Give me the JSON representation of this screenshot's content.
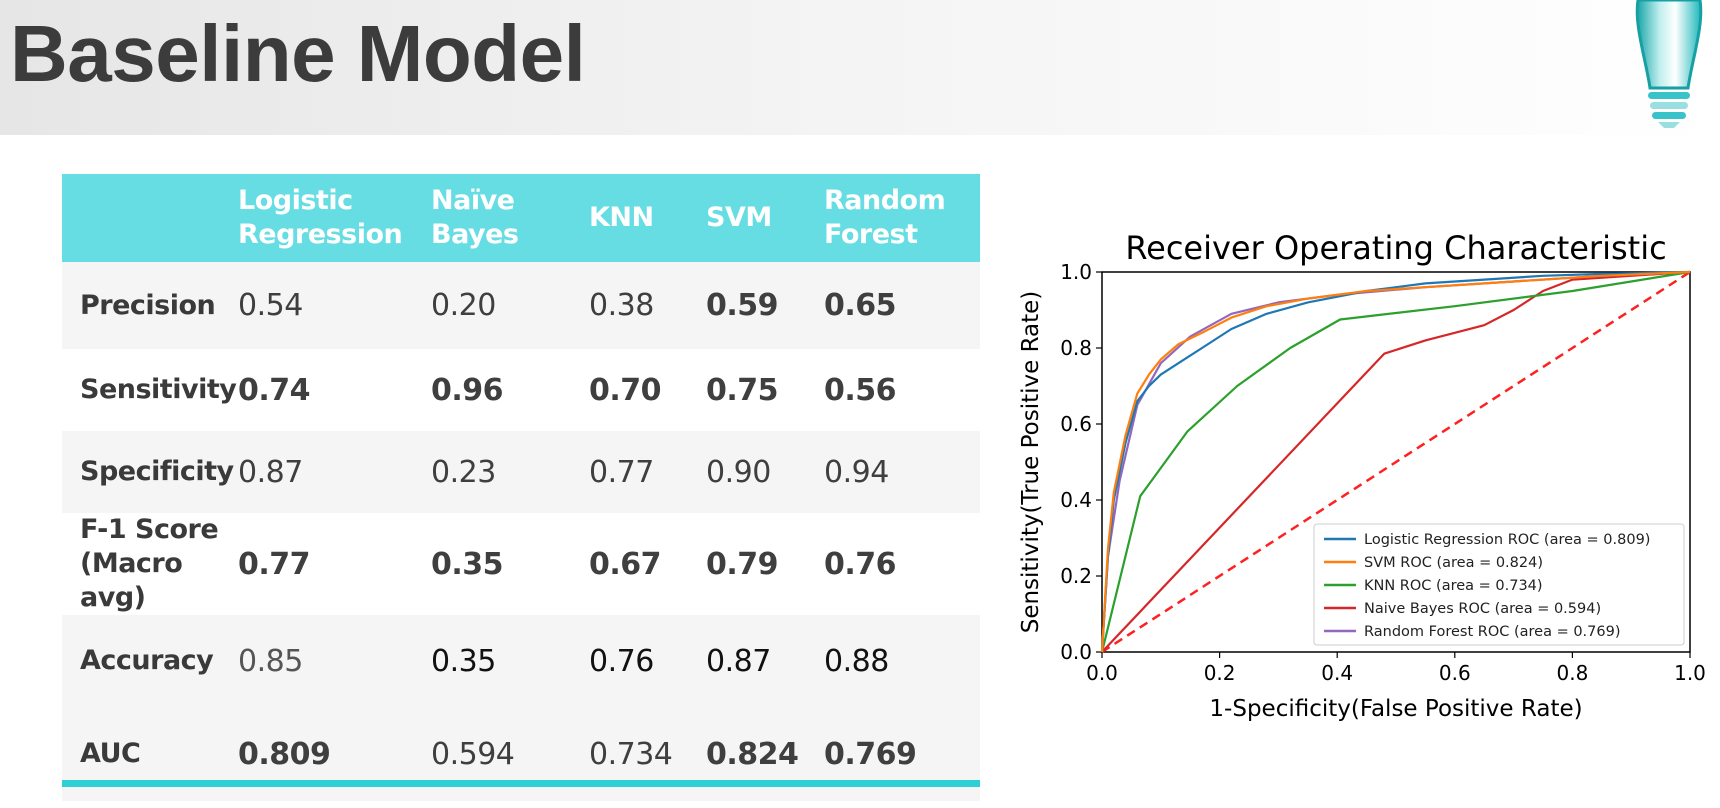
{
  "page": {
    "title": "Baseline Model"
  },
  "table": {
    "headers": [
      "",
      "Logistic\nRegression",
      "Naïve\nBayes",
      "KNN",
      "SVM",
      "Random\nForest"
    ],
    "rows": [
      {
        "label": "Precision",
        "values": [
          "0.54",
          "0.20",
          "0.38",
          "0.59",
          "0.65"
        ]
      },
      {
        "label": "Sensitivity",
        "values": [
          "0.74",
          "0.96",
          "0.70",
          "0.75",
          "0.56"
        ]
      },
      {
        "label": "Specificity",
        "values": [
          "0.87",
          "0.23",
          "0.77",
          "0.90",
          "0.94"
        ]
      },
      {
        "label": "F-1 Score\n(Macro avg)",
        "values": [
          "0.77",
          "0.35",
          "0.67",
          "0.79",
          "0.76"
        ]
      },
      {
        "label": "Accuracy",
        "values": [
          "0.85",
          "0.35",
          "0.76",
          "0.87",
          "0.88"
        ]
      },
      {
        "label": "AUC",
        "values": [
          "0.809",
          "0.594",
          "0.734",
          "0.824",
          "0.769"
        ]
      }
    ]
  },
  "colors": {
    "header_bg": "#66dde3",
    "bottom_bar": "#2ecfd6",
    "highlight_green": "#28a745"
  },
  "chart_data": {
    "type": "line",
    "title": "Receiver Operating Characteristic",
    "xlabel": "1-Specificity(False Positive Rate)",
    "ylabel": "Sensitivity(True Positive Rate)",
    "xlim": [
      0,
      1
    ],
    "ylim": [
      0,
      1
    ],
    "xticks": [
      "0.0",
      "0.2",
      "0.4",
      "0.6",
      "0.8",
      "1.0"
    ],
    "yticks": [
      "0.0",
      "0.2",
      "0.4",
      "0.6",
      "0.8",
      "1.0"
    ],
    "grid": false,
    "legend_position": "lower-right",
    "series": [
      {
        "name": "Logistic Regression ROC (area = 0.809)",
        "color": "#1f77b4",
        "x": [
          0,
          0.01,
          0.02,
          0.04,
          0.06,
          0.08,
          0.1,
          0.13,
          0.17,
          0.22,
          0.28,
          0.35,
          0.45,
          0.55,
          0.65,
          0.75,
          0.85,
          1.0
        ],
        "y": [
          0,
          0.25,
          0.4,
          0.55,
          0.66,
          0.7,
          0.73,
          0.76,
          0.8,
          0.85,
          0.89,
          0.92,
          0.95,
          0.97,
          0.98,
          0.99,
          0.995,
          1.0
        ]
      },
      {
        "name": "SVM ROC (area = 0.824)",
        "color": "#ff7f0e",
        "x": [
          0,
          0.01,
          0.02,
          0.04,
          0.06,
          0.08,
          0.1,
          0.13,
          0.17,
          0.22,
          0.28,
          0.35,
          0.45,
          0.55,
          0.65,
          0.75,
          0.85,
          1.0
        ],
        "y": [
          0,
          0.27,
          0.42,
          0.57,
          0.68,
          0.73,
          0.77,
          0.81,
          0.84,
          0.88,
          0.91,
          0.93,
          0.95,
          0.96,
          0.97,
          0.98,
          0.99,
          1.0
        ]
      },
      {
        "name": "KNN ROC (area = 0.734)",
        "color": "#2ca02c",
        "x": [
          0,
          0.065,
          0.145,
          0.23,
          0.32,
          0.405,
          0.6,
          0.8,
          1.0
        ],
        "y": [
          0,
          0.41,
          0.58,
          0.7,
          0.8,
          0.875,
          0.91,
          0.95,
          1.0
        ]
      },
      {
        "name": "Naive Bayes ROC (area = 0.594)",
        "color": "#d62728",
        "x": [
          0,
          0.48,
          0.55,
          0.6,
          0.65,
          0.7,
          0.75,
          0.8,
          1.0
        ],
        "y": [
          0,
          0.785,
          0.82,
          0.84,
          0.86,
          0.9,
          0.95,
          0.98,
          1.0
        ]
      },
      {
        "name": "Random Forest ROC (area = 0.769)",
        "color": "#9467bd",
        "x": [
          0,
          0.01,
          0.03,
          0.06,
          0.1,
          0.15,
          0.22,
          0.3,
          0.4,
          0.55,
          0.7,
          0.85,
          1.0
        ],
        "y": [
          0,
          0.25,
          0.45,
          0.65,
          0.76,
          0.83,
          0.89,
          0.92,
          0.94,
          0.96,
          0.975,
          0.99,
          1.0
        ]
      }
    ],
    "reference_line": {
      "color": "#ff2020",
      "style": "dashed",
      "x": [
        0,
        1
      ],
      "y": [
        0,
        1
      ]
    }
  }
}
